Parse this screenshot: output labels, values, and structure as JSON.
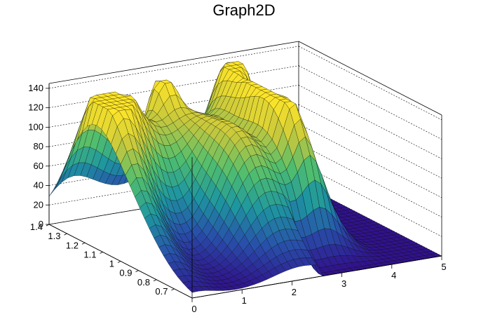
{
  "title": "Graph2D",
  "chart_data": {
    "type": "surface",
    "title": "Graph2D",
    "xlabel": "",
    "ylabel": "",
    "zlabel": "",
    "xlim": [
      0,
      5
    ],
    "ylim": [
      0.6,
      1.4
    ],
    "zlim": [
      0,
      145
    ],
    "x_ticks": [
      0,
      1,
      2,
      3,
      4,
      5
    ],
    "y_ticks": [
      0.7,
      0.8,
      0.9,
      1,
      1.1,
      1.2,
      1.3,
      1.4
    ],
    "z_ticks": [
      0,
      20,
      40,
      60,
      80,
      100,
      120,
      140
    ],
    "x_tick_labels": [
      "0",
      "1",
      "2",
      "3",
      "4",
      "5"
    ],
    "y_tick_labels": [
      "0.7",
      "0.8",
      "0.9",
      "1",
      "1.1",
      "1.2",
      "1.3",
      "1.4"
    ],
    "z_tick_labels": [
      "0",
      "20",
      "40",
      "60",
      "80",
      "100",
      "120",
      "140"
    ],
    "grid": true,
    "colormap": "viridis",
    "features": [
      {
        "x": 0.5,
        "y": 1.2,
        "z": 115
      },
      {
        "x": 1.8,
        "y": 1.3,
        "z": 135
      },
      {
        "x": 2.2,
        "y": 0.95,
        "z": 115
      },
      {
        "x": 3.1,
        "y": 1.0,
        "z": 125
      },
      {
        "x": 3.4,
        "y": 1.35,
        "z": 120
      },
      {
        "x": 4.5,
        "y": 0.8,
        "z": 0
      }
    ]
  }
}
